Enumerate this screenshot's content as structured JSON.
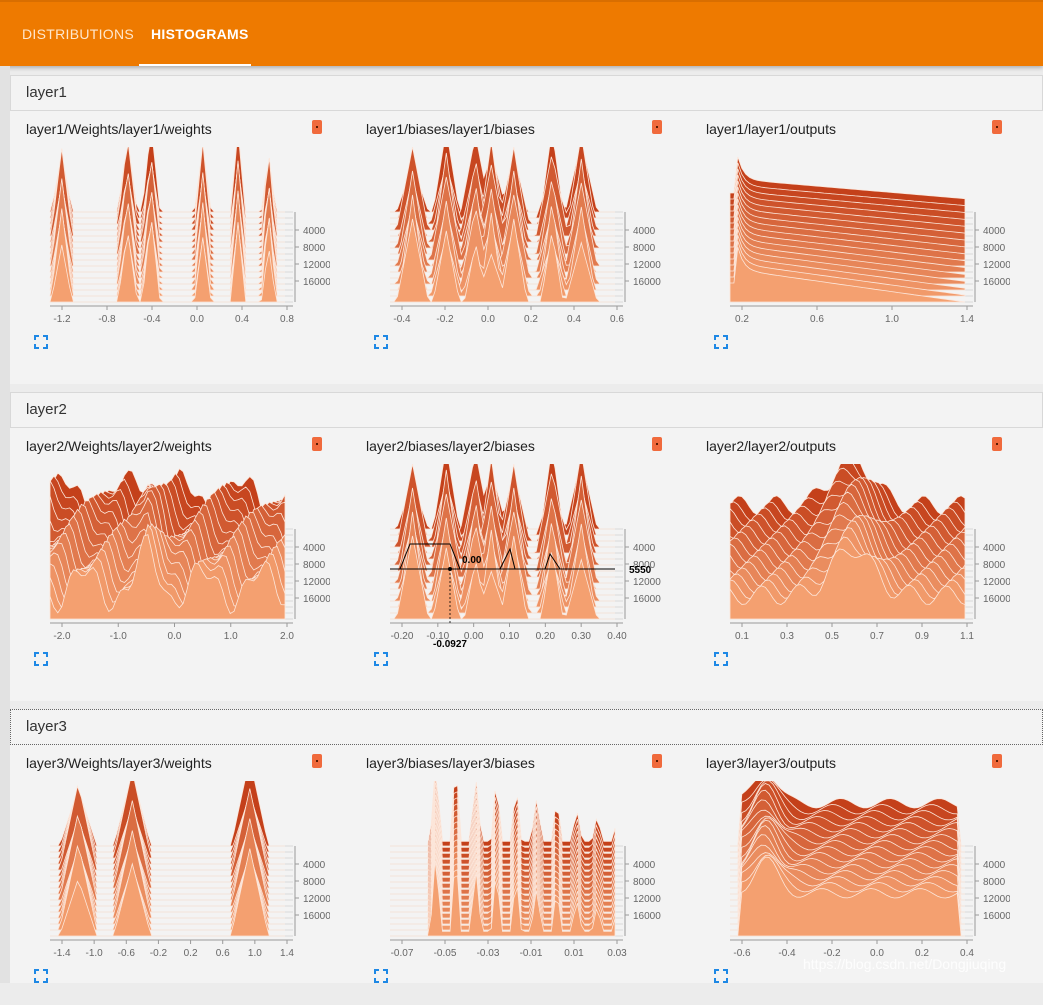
{
  "tabs": [
    {
      "label": "DISTRIBUTIONS",
      "active": false
    },
    {
      "label": "HISTOGRAMS",
      "active": true
    }
  ],
  "accent_color": "#ee7a00",
  "histogram_colors": {
    "back": "#c4401a",
    "front": "#f4a070",
    "highlight": "#fce6da"
  },
  "sections": [
    {
      "title": "layer1",
      "cards": [
        {
          "title": "layer1/Weights/layer1/weights",
          "x_ticks": [
            "-1.2",
            "-0.8",
            "-0.4",
            "0.0",
            "0.4",
            "0.8"
          ],
          "y_ticks": [
            "4000",
            "8000",
            "12000",
            "16000"
          ],
          "shape": "spiky"
        },
        {
          "title": "layer1/biases/layer1/biases",
          "x_ticks": [
            "-0.4",
            "-0.2",
            "0.0",
            "0.2",
            "0.4",
            "0.6"
          ],
          "y_ticks": [
            "4000",
            "8000",
            "12000",
            "16000"
          ],
          "shape": "peaks"
        },
        {
          "title": "layer1/layer1/outputs",
          "x_ticks": [
            "0.2",
            "0.6",
            "1.0",
            "1.4"
          ],
          "y_ticks": [
            "4000",
            "8000",
            "12000",
            "16000"
          ],
          "shape": "decay"
        }
      ]
    },
    {
      "title": "layer2",
      "cards": [
        {
          "title": "layer2/Weights/layer2/weights",
          "x_ticks": [
            "-2.0",
            "-1.0",
            "0.0",
            "1.0",
            "2.0"
          ],
          "y_ticks": [
            "4000",
            "8000",
            "12000",
            "16000"
          ],
          "shape": "dense"
        },
        {
          "title": "layer2/biases/layer2/biases",
          "x_ticks": [
            "-0.20",
            "-0.10",
            "0.00",
            "0.10",
            "0.20",
            "0.30",
            "0.40"
          ],
          "y_ticks": [
            "4000",
            "8000",
            "12000",
            "16000"
          ],
          "shape": "peaks",
          "hover": {
            "x_value": "-0.0927",
            "step": "5550",
            "y_value": "0.00"
          }
        },
        {
          "title": "layer2/layer2/outputs",
          "x_ticks": [
            "0.1",
            "0.3",
            "0.5",
            "0.7",
            "0.9",
            "1.1"
          ],
          "y_ticks": [
            "4000",
            "8000",
            "12000",
            "16000"
          ],
          "shape": "bump"
        }
      ]
    },
    {
      "title": "layer3",
      "cards": [
        {
          "title": "layer3/Weights/layer3/weights",
          "x_ticks": [
            "-1.4",
            "-1.0",
            "-0.6",
            "-0.2",
            "0.2",
            "0.6",
            "1.0",
            "1.4"
          ],
          "y_ticks": [
            "4000",
            "8000",
            "12000",
            "16000"
          ],
          "shape": "clusters"
        },
        {
          "title": "layer3/biases/layer3/biases",
          "x_ticks": [
            "-0.07",
            "-0.05",
            "-0.03",
            "-0.01",
            "0.01",
            "0.03"
          ],
          "y_ticks": [
            "4000",
            "8000",
            "12000",
            "16000"
          ],
          "shape": "ramp"
        },
        {
          "title": "layer3/layer3/outputs",
          "x_ticks": [
            "-0.6",
            "-0.4",
            "-0.2",
            "0.0",
            "0.2",
            "0.4"
          ],
          "y_ticks": [
            "4000",
            "8000",
            "12000",
            "16000"
          ],
          "shape": "plateau"
        }
      ]
    }
  ],
  "watermark": "https://blog.csdn.net/Dongjiuqing"
}
